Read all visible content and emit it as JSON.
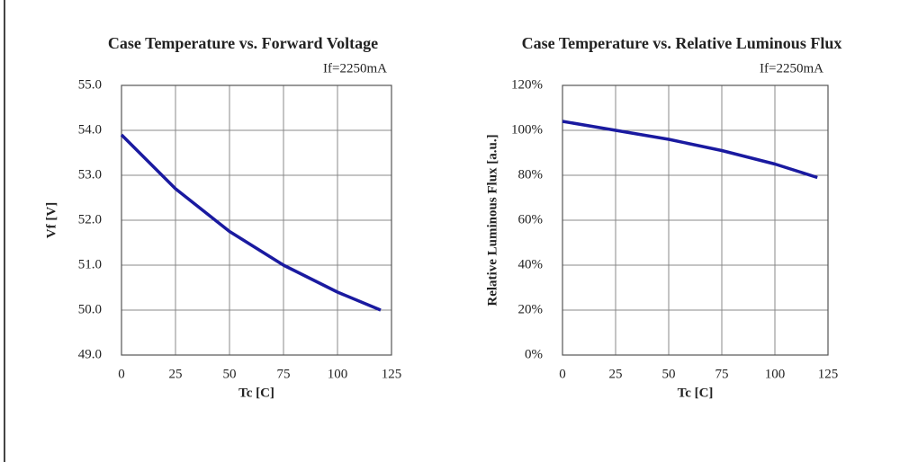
{
  "chart_data": [
    {
      "type": "line",
      "title": "Case Temperature vs. Forward Voltage",
      "subtitle": "If=2250mA",
      "x_label": "Tc [C]",
      "y_label": "Vf [V]",
      "x": [
        0,
        25,
        50,
        75,
        100,
        120
      ],
      "series": [
        {
          "name": "Vf",
          "color": "#1a1aa0",
          "values": [
            53.9,
            52.7,
            51.75,
            51.0,
            50.4,
            50.0
          ]
        }
      ],
      "xlim": [
        0,
        125
      ],
      "xticks": [
        0,
        25,
        50,
        75,
        100,
        125
      ],
      "ylim": [
        49,
        55
      ],
      "yticks": [
        {
          "value": 49,
          "label": "49.0"
        },
        {
          "value": 50,
          "label": "50.0"
        },
        {
          "value": 51,
          "label": "51.0"
        },
        {
          "value": 52,
          "label": "52.0"
        },
        {
          "value": 53,
          "label": "53.0"
        },
        {
          "value": 54,
          "label": "54.0"
        },
        {
          "value": 55,
          "label": "55.0"
        }
      ],
      "grid": true
    },
    {
      "type": "line",
      "title": "Case Temperature vs. Relative Luminous Flux",
      "subtitle": "If=2250mA",
      "x_label": "Tc [C]",
      "y_label": "Relative Luminous Flux [a.u.]",
      "x": [
        0,
        25,
        50,
        75,
        100,
        120
      ],
      "series": [
        {
          "name": "Flux",
          "color": "#1a1aa0",
          "values": [
            104,
            100,
            96,
            91,
            85,
            79
          ]
        }
      ],
      "xlim": [
        0,
        125
      ],
      "xticks": [
        0,
        25,
        50,
        75,
        100,
        125
      ],
      "ylim": [
        0,
        120
      ],
      "yticks": [
        {
          "value": 0,
          "label": "0%"
        },
        {
          "value": 20,
          "label": "20%"
        },
        {
          "value": 40,
          "label": "40%"
        },
        {
          "value": 60,
          "label": "60%"
        },
        {
          "value": 80,
          "label": "80%"
        },
        {
          "value": 100,
          "label": "100%"
        },
        {
          "value": 120,
          "label": "120%"
        }
      ],
      "grid": true
    }
  ]
}
